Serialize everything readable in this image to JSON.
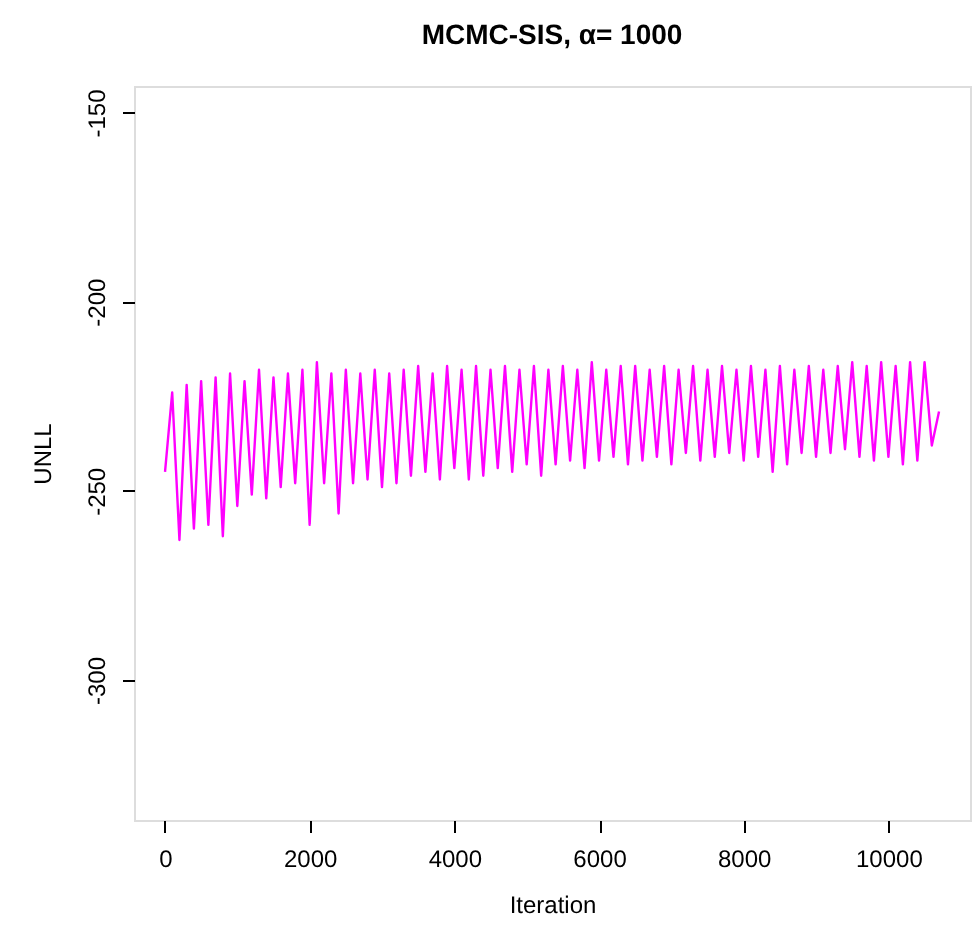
{
  "chart_data": {
    "type": "line",
    "title": "MCMC-SIS, α= 1000",
    "xlabel": "Iteration",
    "ylabel": "UNLL",
    "xlim": [
      -428,
      11128
    ],
    "xticks": [
      0,
      2000,
      4000,
      6000,
      8000,
      10000
    ],
    "ylim": [
      -337,
      -143
    ],
    "yticks": [
      -300,
      -250,
      -200,
      -150
    ],
    "line_style": "solid",
    "series": [
      {
        "color": "#ff00ff",
        "x": [
          1,
          100,
          200,
          300,
          400,
          500,
          600,
          700,
          800,
          900,
          1000,
          1100,
          1200,
          1300,
          1400,
          1500,
          1600,
          1700,
          1800,
          1900,
          2000,
          2100,
          2200,
          2300,
          2400,
          2500,
          2600,
          2700,
          2800,
          2900,
          3000,
          3100,
          3200,
          3300,
          3400,
          3500,
          3600,
          3700,
          3800,
          3900,
          4000,
          4100,
          4200,
          4300,
          4400,
          4500,
          4600,
          4700,
          4800,
          4900,
          5000,
          5100,
          5200,
          5300,
          5400,
          5500,
          5600,
          5700,
          5800,
          5900,
          6000,
          6100,
          6200,
          6300,
          6400,
          6500,
          6600,
          6700,
          6800,
          6900,
          7000,
          7100,
          7200,
          7300,
          7400,
          7500,
          7600,
          7700,
          7800,
          7900,
          8000,
          8100,
          8200,
          8300,
          8400,
          8500,
          8600,
          8700,
          8800,
          8900,
          9000,
          9100,
          9200,
          9300,
          9400,
          9500,
          9600,
          9700,
          9800,
          9900,
          10000,
          10100,
          10200,
          10300,
          10400,
          10500,
          10600,
          10700
        ],
        "values": [
          -245,
          -224,
          -263,
          -222,
          -260,
          -221,
          -259,
          -220,
          -262,
          -219,
          -254,
          -221,
          -251,
          -218,
          -252,
          -220,
          -249,
          -219,
          -248,
          -218,
          -259,
          -216,
          -248,
          -219,
          -256,
          -218,
          -248,
          -219,
          -247,
          -218,
          -249,
          -219,
          -248,
          -218,
          -246,
          -217,
          -245,
          -219,
          -247,
          -217,
          -244,
          -218,
          -247,
          -217,
          -246,
          -218,
          -244,
          -217,
          -245,
          -218,
          -243,
          -217,
          -246,
          -218,
          -243,
          -217,
          -242,
          -218,
          -244,
          -216,
          -242,
          -218,
          -241,
          -217,
          -243,
          -217,
          -242,
          -218,
          -241,
          -217,
          -243,
          -218,
          -240,
          -217,
          -242,
          -218,
          -241,
          -217,
          -240,
          -218,
          -242,
          -217,
          -241,
          -218,
          -245,
          -217,
          -243,
          -218,
          -240,
          -217,
          -241,
          -218,
          -240,
          -217,
          -239,
          -216,
          -241,
          -217,
          -242,
          -216,
          -241,
          -217,
          -243,
          -216,
          -242,
          -216,
          -238,
          -229
        ]
      }
    ]
  }
}
